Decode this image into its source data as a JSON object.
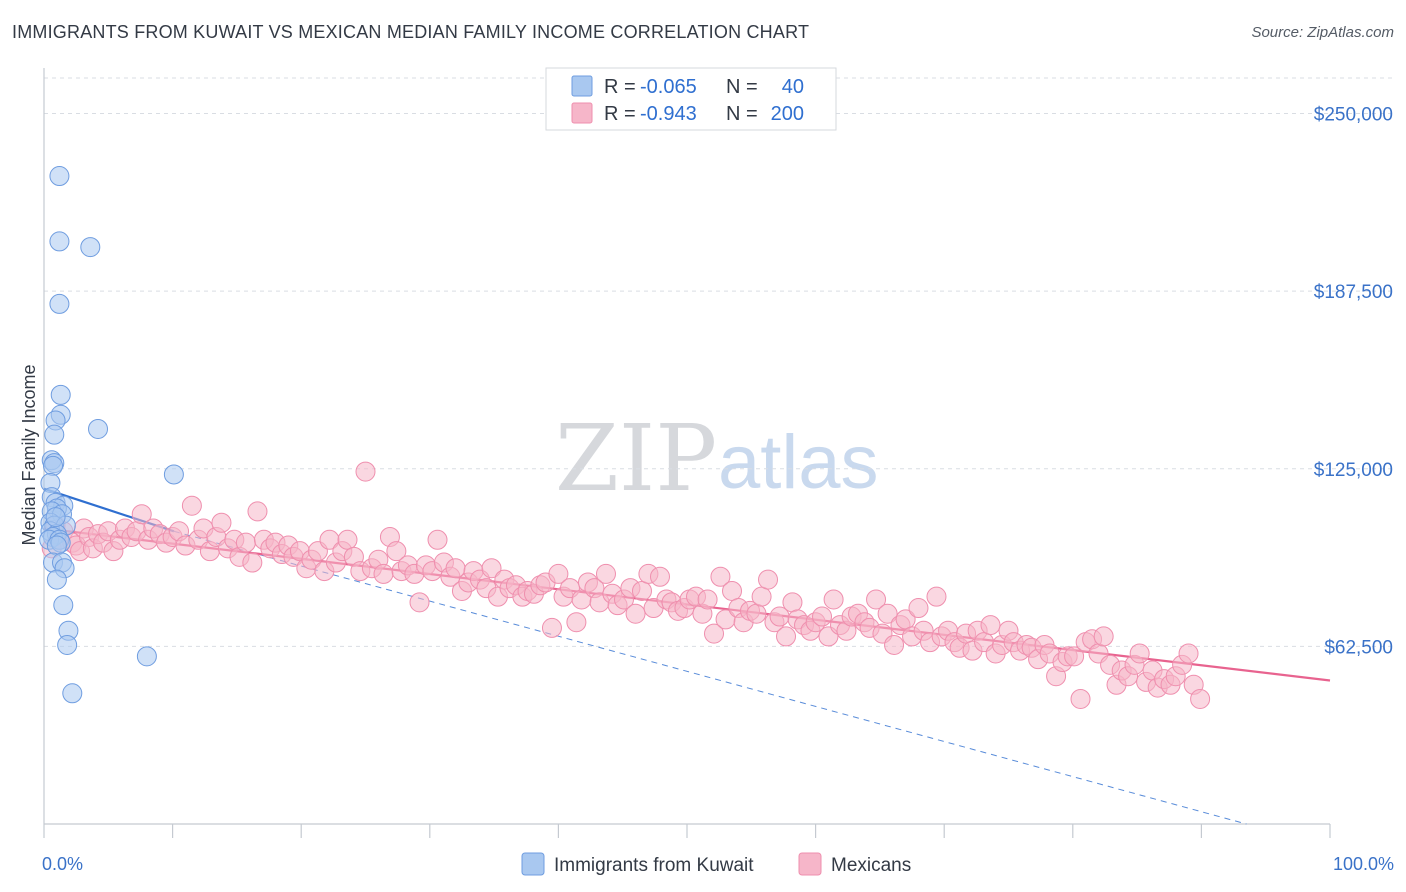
{
  "title": "IMMIGRANTS FROM KUWAIT VS MEXICAN MEDIAN FAMILY INCOME CORRELATION CHART",
  "source": "Source: ZipAtlas.com",
  "watermark": {
    "zip": "ZIP",
    "atlas": "atlas"
  },
  "colors": {
    "kuwait_fill": "#a9c8f0",
    "kuwait_stroke": "#6f9de0",
    "kuwait_line": "#2f6fd0",
    "mexican_fill": "#f6b6c9",
    "mexican_stroke": "#ef8fae",
    "mexican_line": "#e8638f",
    "axis_text": "#3a72c8",
    "grid": "#d9dde3"
  },
  "legend": {
    "rows": [
      {
        "r_label": "R =",
        "r_value": "-0.065",
        "n_label": "N =",
        "n_value": "40"
      },
      {
        "r_label": "R =",
        "r_value": "-0.943",
        "n_label": "N =",
        "n_value": "200"
      }
    ]
  },
  "chart_data": {
    "type": "scatter",
    "title": "IMMIGRANTS FROM KUWAIT VS MEXICAN MEDIAN FAMILY INCOME CORRELATION CHART",
    "xlabel": "",
    "ylabel": "Median Family Income",
    "xlim": [
      0,
      100
    ],
    "ylim": [
      0,
      262500
    ],
    "x_tick_labels": [
      "0.0%",
      "100.0%"
    ],
    "y_ticks": [
      62500,
      125000,
      187500,
      250000
    ],
    "y_tick_labels": [
      "$62,500",
      "$125,000",
      "$187,500",
      "$250,000"
    ],
    "series": [
      {
        "name": "Immigrants from Kuwait",
        "color": "kuwait",
        "trend": {
          "x": [
            0,
            10.1
          ],
          "y": [
            118000,
            103000
          ],
          "dashed_extension": {
            "x": [
              10.1,
              93.5
            ],
            "y": [
              103000,
              0
            ]
          }
        },
        "points": [
          [
            1.2,
            228000
          ],
          [
            1.2,
            205000
          ],
          [
            3.6,
            203000
          ],
          [
            1.2,
            183000
          ],
          [
            1.3,
            151000
          ],
          [
            1.3,
            144000
          ],
          [
            0.9,
            142000
          ],
          [
            4.2,
            139000
          ],
          [
            0.8,
            137000
          ],
          [
            0.6,
            128000
          ],
          [
            0.8,
            127000
          ],
          [
            0.7,
            126000
          ],
          [
            10.1,
            123000
          ],
          [
            0.5,
            120000
          ],
          [
            0.6,
            115000
          ],
          [
            0.9,
            113000
          ],
          [
            1.5,
            112000
          ],
          [
            1.0,
            111000
          ],
          [
            0.6,
            110000
          ],
          [
            1.4,
            109000
          ],
          [
            0.5,
            106000
          ],
          [
            0.8,
            105000
          ],
          [
            1.7,
            105000
          ],
          [
            0.5,
            103000
          ],
          [
            1.0,
            102000
          ],
          [
            0.7,
            101000
          ],
          [
            0.4,
            100000
          ],
          [
            1.2,
            100000
          ],
          [
            1.3,
            99000
          ],
          [
            1.0,
            98000
          ],
          [
            0.7,
            92000
          ],
          [
            1.4,
            92000
          ],
          [
            1.6,
            90000
          ],
          [
            1.0,
            86000
          ],
          [
            1.5,
            77000
          ],
          [
            1.9,
            68000
          ],
          [
            1.8,
            63000
          ],
          [
            8.0,
            59000
          ],
          [
            2.2,
            46000
          ],
          [
            0.9,
            108000
          ]
        ]
      },
      {
        "name": "Mexicans",
        "color": "mexican",
        "trend": {
          "x": [
            0,
            100
          ],
          "y": [
            104000,
            50500
          ]
        },
        "points": [
          [
            0.6,
            97000
          ],
          [
            0.9,
            105000
          ],
          [
            1.2,
            100000
          ],
          [
            1.5,
            103000
          ],
          [
            2.2,
            99000
          ],
          [
            2.5,
            98000
          ],
          [
            2.8,
            96000
          ],
          [
            3.1,
            104000
          ],
          [
            3.5,
            101000
          ],
          [
            3.8,
            97000
          ],
          [
            4.2,
            102000
          ],
          [
            4.6,
            99000
          ],
          [
            5.0,
            103000
          ],
          [
            5.4,
            96000
          ],
          [
            5.9,
            100000
          ],
          [
            6.3,
            104000
          ],
          [
            6.8,
            101000
          ],
          [
            7.2,
            103000
          ],
          [
            7.6,
            109000
          ],
          [
            8.1,
            100000
          ],
          [
            8.5,
            104000
          ],
          [
            9.0,
            102000
          ],
          [
            9.5,
            99000
          ],
          [
            10.0,
            101000
          ],
          [
            10.5,
            103000
          ],
          [
            11.0,
            98000
          ],
          [
            11.5,
            112000
          ],
          [
            12.0,
            100000
          ],
          [
            12.4,
            104000
          ],
          [
            12.9,
            96000
          ],
          [
            13.4,
            101000
          ],
          [
            13.8,
            106000
          ],
          [
            14.3,
            97000
          ],
          [
            14.8,
            100000
          ],
          [
            15.2,
            94000
          ],
          [
            15.7,
            99000
          ],
          [
            16.2,
            92000
          ],
          [
            16.6,
            110000
          ],
          [
            17.1,
            100000
          ],
          [
            17.6,
            97000
          ],
          [
            18.0,
            99000
          ],
          [
            18.5,
            95000
          ],
          [
            19.0,
            98000
          ],
          [
            19.4,
            94000
          ],
          [
            19.9,
            96000
          ],
          [
            20.4,
            90000
          ],
          [
            20.8,
            93000
          ],
          [
            21.3,
            96000
          ],
          [
            21.8,
            89000
          ],
          [
            22.2,
            100000
          ],
          [
            22.7,
            92000
          ],
          [
            23.2,
            96000
          ],
          [
            23.6,
            100000
          ],
          [
            24.1,
            94000
          ],
          [
            24.6,
            89000
          ],
          [
            25.0,
            124000
          ],
          [
            25.5,
            90000
          ],
          [
            26.0,
            93000
          ],
          [
            26.4,
            88000
          ],
          [
            26.9,
            101000
          ],
          [
            27.4,
            96000
          ],
          [
            27.8,
            89000
          ],
          [
            28.3,
            91000
          ],
          [
            28.8,
            88000
          ],
          [
            29.2,
            78000
          ],
          [
            29.7,
            91000
          ],
          [
            30.2,
            89000
          ],
          [
            30.6,
            100000
          ],
          [
            31.1,
            92000
          ],
          [
            31.6,
            87000
          ],
          [
            32.0,
            90000
          ],
          [
            32.5,
            82000
          ],
          [
            33.0,
            85000
          ],
          [
            33.4,
            89000
          ],
          [
            33.9,
            86000
          ],
          [
            34.4,
            83000
          ],
          [
            34.8,
            90000
          ],
          [
            35.3,
            80000
          ],
          [
            35.8,
            86000
          ],
          [
            36.2,
            83000
          ],
          [
            36.7,
            84000
          ],
          [
            37.2,
            80000
          ],
          [
            37.6,
            82000
          ],
          [
            38.1,
            81000
          ],
          [
            38.6,
            84000
          ],
          [
            39.0,
            85000
          ],
          [
            39.5,
            69000
          ],
          [
            40.0,
            88000
          ],
          [
            40.4,
            80000
          ],
          [
            40.9,
            83000
          ],
          [
            41.4,
            71000
          ],
          [
            41.8,
            79000
          ],
          [
            42.3,
            85000
          ],
          [
            42.8,
            83000
          ],
          [
            43.2,
            78000
          ],
          [
            43.7,
            88000
          ],
          [
            44.2,
            81000
          ],
          [
            44.6,
            77000
          ],
          [
            45.1,
            79000
          ],
          [
            45.6,
            83000
          ],
          [
            46.0,
            74000
          ],
          [
            46.5,
            82000
          ],
          [
            47.0,
            88000
          ],
          [
            47.4,
            76000
          ],
          [
            47.9,
            87000
          ],
          [
            48.4,
            79000
          ],
          [
            48.8,
            78000
          ],
          [
            49.3,
            75000
          ],
          [
            49.8,
            76000
          ],
          [
            50.2,
            79000
          ],
          [
            50.7,
            80000
          ],
          [
            51.2,
            74000
          ],
          [
            51.6,
            79000
          ],
          [
            52.1,
            67000
          ],
          [
            52.6,
            87000
          ],
          [
            53.0,
            72000
          ],
          [
            53.5,
            82000
          ],
          [
            54.0,
            76000
          ],
          [
            54.4,
            71000
          ],
          [
            54.9,
            75000
          ],
          [
            55.4,
            74000
          ],
          [
            55.8,
            80000
          ],
          [
            56.3,
            86000
          ],
          [
            56.8,
            71000
          ],
          [
            57.2,
            73000
          ],
          [
            57.7,
            66000
          ],
          [
            58.2,
            78000
          ],
          [
            58.6,
            72000
          ],
          [
            59.1,
            70000
          ],
          [
            59.6,
            68000
          ],
          [
            60.0,
            71000
          ],
          [
            60.5,
            73000
          ],
          [
            61.0,
            66000
          ],
          [
            61.4,
            79000
          ],
          [
            61.9,
            70000
          ],
          [
            62.4,
            68000
          ],
          [
            62.8,
            73000
          ],
          [
            63.3,
            74000
          ],
          [
            63.8,
            71000
          ],
          [
            64.2,
            69000
          ],
          [
            64.7,
            79000
          ],
          [
            65.2,
            67000
          ],
          [
            65.6,
            74000
          ],
          [
            66.1,
            63000
          ],
          [
            66.6,
            70000
          ],
          [
            67.0,
            72000
          ],
          [
            67.5,
            66000
          ],
          [
            68.0,
            76000
          ],
          [
            68.4,
            68000
          ],
          [
            68.9,
            64000
          ],
          [
            69.4,
            80000
          ],
          [
            69.8,
            66000
          ],
          [
            70.3,
            68000
          ],
          [
            70.8,
            64000
          ],
          [
            71.2,
            62000
          ],
          [
            71.7,
            67000
          ],
          [
            72.2,
            61000
          ],
          [
            72.6,
            68000
          ],
          [
            73.1,
            64000
          ],
          [
            73.6,
            70000
          ],
          [
            74.0,
            60000
          ],
          [
            74.5,
            63000
          ],
          [
            75.0,
            68000
          ],
          [
            75.4,
            64000
          ],
          [
            75.9,
            61000
          ],
          [
            76.4,
            63000
          ],
          [
            76.8,
            62000
          ],
          [
            77.3,
            58000
          ],
          [
            77.8,
            63000
          ],
          [
            78.2,
            60000
          ],
          [
            78.7,
            52000
          ],
          [
            79.2,
            57000
          ],
          [
            79.6,
            59000
          ],
          [
            80.1,
            59000
          ],
          [
            80.6,
            44000
          ],
          [
            81.0,
            64000
          ],
          [
            81.5,
            65000
          ],
          [
            82.0,
            60000
          ],
          [
            82.4,
            66000
          ],
          [
            82.9,
            56000
          ],
          [
            83.4,
            49000
          ],
          [
            83.8,
            54000
          ],
          [
            84.3,
            52000
          ],
          [
            84.8,
            56000
          ],
          [
            85.2,
            60000
          ],
          [
            85.7,
            50000
          ],
          [
            86.2,
            54000
          ],
          [
            86.6,
            48000
          ],
          [
            87.1,
            51000
          ],
          [
            87.6,
            49000
          ],
          [
            88.0,
            52000
          ],
          [
            88.5,
            56000
          ],
          [
            89.0,
            60000
          ],
          [
            89.4,
            49000
          ],
          [
            89.9,
            44000
          ]
        ]
      }
    ]
  },
  "bottom_legend": {
    "items": [
      {
        "label": "Immigrants from Kuwait"
      },
      {
        "label": "Mexicans"
      }
    ]
  }
}
